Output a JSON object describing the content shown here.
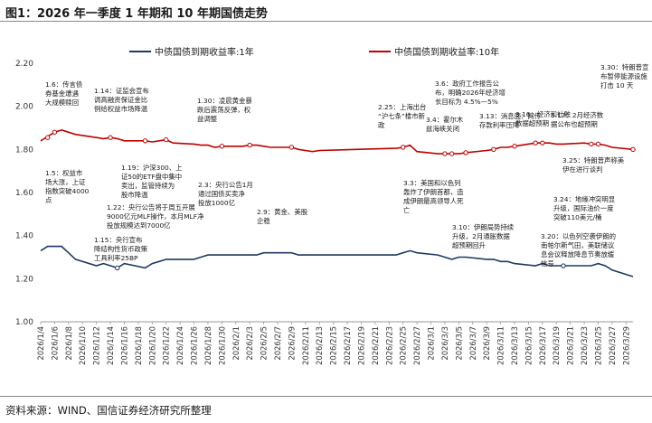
{
  "figure": {
    "title": "图1：2026 年一季度 1 年期和 10 年期国债走势",
    "source": "资料来源：WIND、国信证券经济研究所整理"
  },
  "chart_data": {
    "type": "line",
    "title": "",
    "xlabel": "",
    "ylabel": "",
    "ylim": [
      1.0,
      2.2
    ],
    "yticks": [
      "1.00",
      "1.20",
      "1.40",
      "1.60",
      "1.80",
      "2.00",
      "2.20"
    ],
    "grid": false,
    "legend_position": "top",
    "x_tick_labels": [
      "2026/1/4",
      "2026/1/6",
      "2026/1/8",
      "2026/1/10",
      "2026/1/12",
      "2026/1/14",
      "2026/1/16",
      "2026/1/18",
      "2026/1/20",
      "2026/1/22",
      "2026/1/24",
      "2026/1/26",
      "2026/1/28",
      "2026/1/30",
      "2026/2/1",
      "2026/2/3",
      "2026/2/5",
      "2026/2/7",
      "2026/2/9",
      "2026/2/11",
      "2026/2/13",
      "2026/2/15",
      "2026/2/17",
      "2026/2/19",
      "2026/2/21",
      "2026/2/23",
      "2026/2/25",
      "2026/2/27",
      "2026/3/1",
      "2026/3/3",
      "2026/3/5",
      "2026/3/7",
      "2026/3/9",
      "2026/3/11",
      "2026/3/13",
      "2026/3/15",
      "2026/3/17",
      "2026/3/19",
      "2026/3/21",
      "2026/3/23",
      "2026/3/25",
      "2026/3/27",
      "2026/3/29"
    ],
    "series": [
      {
        "name": "中债国债到期收益率:1年",
        "color": "#1f3864",
        "x": [
          "2026/1/4",
          "2026/1/5",
          "2026/1/6",
          "2026/1/7",
          "2026/1/8",
          "2026/1/9",
          "2026/1/12",
          "2026/1/13",
          "2026/1/14",
          "2026/1/15",
          "2026/1/16",
          "2026/1/19",
          "2026/1/20",
          "2026/1/21",
          "2026/1/22",
          "2026/1/23",
          "2026/1/26",
          "2026/1/27",
          "2026/1/28",
          "2026/1/29",
          "2026/1/30",
          "2026/2/2",
          "2026/2/3",
          "2026/2/4",
          "2026/2/5",
          "2026/2/6",
          "2026/2/9",
          "2026/2/10",
          "2026/2/11",
          "2026/2/12",
          "2026/2/13",
          "2026/2/24",
          "2026/2/25",
          "2026/2/26",
          "2026/2/27",
          "2026/3/2",
          "2026/3/3",
          "2026/3/4",
          "2026/3/5",
          "2026/3/6",
          "2026/3/9",
          "2026/3/10",
          "2026/3/11",
          "2026/3/12",
          "2026/3/13",
          "2026/3/16",
          "2026/3/17",
          "2026/3/18",
          "2026/3/19",
          "2026/3/20",
          "2026/3/23",
          "2026/3/24",
          "2026/3/25",
          "2026/3/26",
          "2026/3/27",
          "2026/3/30"
        ],
        "values": [
          1.33,
          1.35,
          1.35,
          1.35,
          1.32,
          1.29,
          1.26,
          1.27,
          1.26,
          1.25,
          1.27,
          1.25,
          1.27,
          1.28,
          1.29,
          1.29,
          1.29,
          1.3,
          1.31,
          1.31,
          1.31,
          1.31,
          1.31,
          1.31,
          1.32,
          1.32,
          1.32,
          1.31,
          1.31,
          1.31,
          1.31,
          1.31,
          1.32,
          1.33,
          1.32,
          1.31,
          1.3,
          1.29,
          1.3,
          1.3,
          1.29,
          1.29,
          1.28,
          1.28,
          1.27,
          1.26,
          1.27,
          1.26,
          1.26,
          1.26,
          1.26,
          1.26,
          1.27,
          1.26,
          1.24,
          1.21
        ]
      },
      {
        "name": "中债国债到期收益率:10年",
        "color": "#c00000",
        "x": [
          "2026/1/4",
          "2026/1/5",
          "2026/1/6",
          "2026/1/7",
          "2026/1/8",
          "2026/1/9",
          "2026/1/12",
          "2026/1/13",
          "2026/1/14",
          "2026/1/15",
          "2026/1/16",
          "2026/1/19",
          "2026/1/20",
          "2026/1/21",
          "2026/1/22",
          "2026/1/23",
          "2026/1/26",
          "2026/1/27",
          "2026/1/28",
          "2026/1/29",
          "2026/1/30",
          "2026/2/2",
          "2026/2/3",
          "2026/2/4",
          "2026/2/5",
          "2026/2/6",
          "2026/2/9",
          "2026/2/10",
          "2026/2/11",
          "2026/2/12",
          "2026/2/13",
          "2026/2/24",
          "2026/2/25",
          "2026/2/26",
          "2026/2/27",
          "2026/3/2",
          "2026/3/3",
          "2026/3/4",
          "2026/3/5",
          "2026/3/6",
          "2026/3/9",
          "2026/3/10",
          "2026/3/11",
          "2026/3/12",
          "2026/3/13",
          "2026/3/16",
          "2026/3/17",
          "2026/3/18",
          "2026/3/19",
          "2026/3/20",
          "2026/3/23",
          "2026/3/24",
          "2026/3/25",
          "2026/3/26",
          "2026/3/27",
          "2026/3/30"
        ],
        "values": [
          1.84,
          1.86,
          1.88,
          1.89,
          1.88,
          1.87,
          1.855,
          1.85,
          1.855,
          1.85,
          1.84,
          1.84,
          1.835,
          1.84,
          1.845,
          1.83,
          1.825,
          1.82,
          1.82,
          1.81,
          1.815,
          1.815,
          1.82,
          1.82,
          1.815,
          1.81,
          1.81,
          1.8,
          1.795,
          1.79,
          1.795,
          1.805,
          1.81,
          1.82,
          1.79,
          1.78,
          1.78,
          1.78,
          1.78,
          1.785,
          1.795,
          1.8,
          1.81,
          1.81,
          1.815,
          1.83,
          1.83,
          1.83,
          1.825,
          1.825,
          1.83,
          1.825,
          1.825,
          1.82,
          1.81,
          1.8
        ]
      }
    ],
    "annotations": [
      {
        "x": "2026/1/6",
        "y": 1.88,
        "lines": [
          "1.6：传言债",
          "券基金遭遇",
          "大规模赎回"
        ]
      },
      {
        "x": "2026/1/5",
        "y": 1.855,
        "lines": [
          "1.5：权益市",
          "场大涨，上证",
          "指数突破4000",
          "点"
        ]
      },
      {
        "x": "2026/1/14",
        "y": 1.855,
        "lines": [
          "1.14：证监会宣布",
          "调高融资保证金比",
          "例给权益市场降温"
        ]
      },
      {
        "x": "2026/1/19",
        "y": 1.84,
        "lines": [
          "1.19：沪深300、上",
          "证50的ETF盘中集中",
          "卖出，监管持续为",
          "股市降温"
        ]
      },
      {
        "x": "2026/1/15",
        "y": 1.25,
        "lines": [
          "1.15：央行宣布",
          "降结构性货币政策",
          "工具利率25BP"
        ]
      },
      {
        "x": "2026/1/22",
        "y": 1.845,
        "lines": [
          "1.22：央行公告将于周五开展",
          "9000亿元MLF操作，本月MLF净",
          "投放规模达到7000亿"
        ]
      },
      {
        "x": "2026/1/30",
        "y": 1.815,
        "lines": [
          "1.30：凌晨黄金暴",
          "跌后震荡反弹，权",
          "益调整"
        ]
      },
      {
        "x": "2026/2/3",
        "y": 1.82,
        "lines": [
          "2.3：央行公告1月",
          "通过国债买卖净",
          "投放1000亿"
        ]
      },
      {
        "x": "2026/2/9",
        "y": 1.81,
        "lines": [
          "2.9：黄金、美股",
          "企稳"
        ]
      },
      {
        "x": "2026/2/25",
        "y": 1.81,
        "lines": [
          "2.25：上海出台",
          "“沪七条”楼市新",
          "政"
        ]
      },
      {
        "x": "2026/3/3",
        "y": 1.78,
        "lines": [
          "3.3：美国和以色列",
          "轰炸了伊朗首都，造",
          "成伊朗最高领导人死",
          "亡"
        ]
      },
      {
        "x": "2026/3/4",
        "y": 1.78,
        "lines": [
          "3.4：霍尔木",
          "兹海峡关闭"
        ]
      },
      {
        "x": "2026/3/6",
        "y": 1.785,
        "lines": [
          "3.6：政府工作报告公",
          "布，明确2026年经济增",
          "长目标为 4.5%—5%"
        ]
      },
      {
        "x": "2026/3/10",
        "y": 1.8,
        "lines": [
          "3.10：伊朗局势持续",
          "升级，2月通胀数据",
          "超预期回升"
        ]
      },
      {
        "x": "2026/3/13",
        "y": 1.815,
        "lines": [
          "3.13：消息面：网传",
          "存款利率压降"
        ]
      },
      {
        "x": "2026/3/16",
        "y": 1.83,
        "lines": [
          "3.16：经济和社融",
          "数据超预期"
        ]
      },
      {
        "x": "2026/3/17",
        "y": 1.83,
        "lines": [
          "3.17：2月经济数",
          "据公布也超预期"
        ]
      },
      {
        "x": "2026/3/20",
        "y": 1.26,
        "lines": [
          "3.20：以色列空袭伊朗的",
          "南帕尔斯气田，美联储议",
          "息会议释放降息节奏放缓",
          "信号"
        ]
      },
      {
        "x": "2026/3/24",
        "y": 1.825,
        "lines": [
          "3.24：地缘冲突明显",
          "升级，国际油价一度",
          "突破110美元/桶"
        ]
      },
      {
        "x": "2026/3/25",
        "y": 1.825,
        "lines": [
          "3.25：特朗普声称美",
          "伊在进行谈判"
        ]
      },
      {
        "x": "2026/3/30",
        "y": 1.8,
        "lines": [
          "3.30：特朗普宣",
          "布暂停能源设施",
          "打击 10 天"
        ]
      }
    ]
  }
}
